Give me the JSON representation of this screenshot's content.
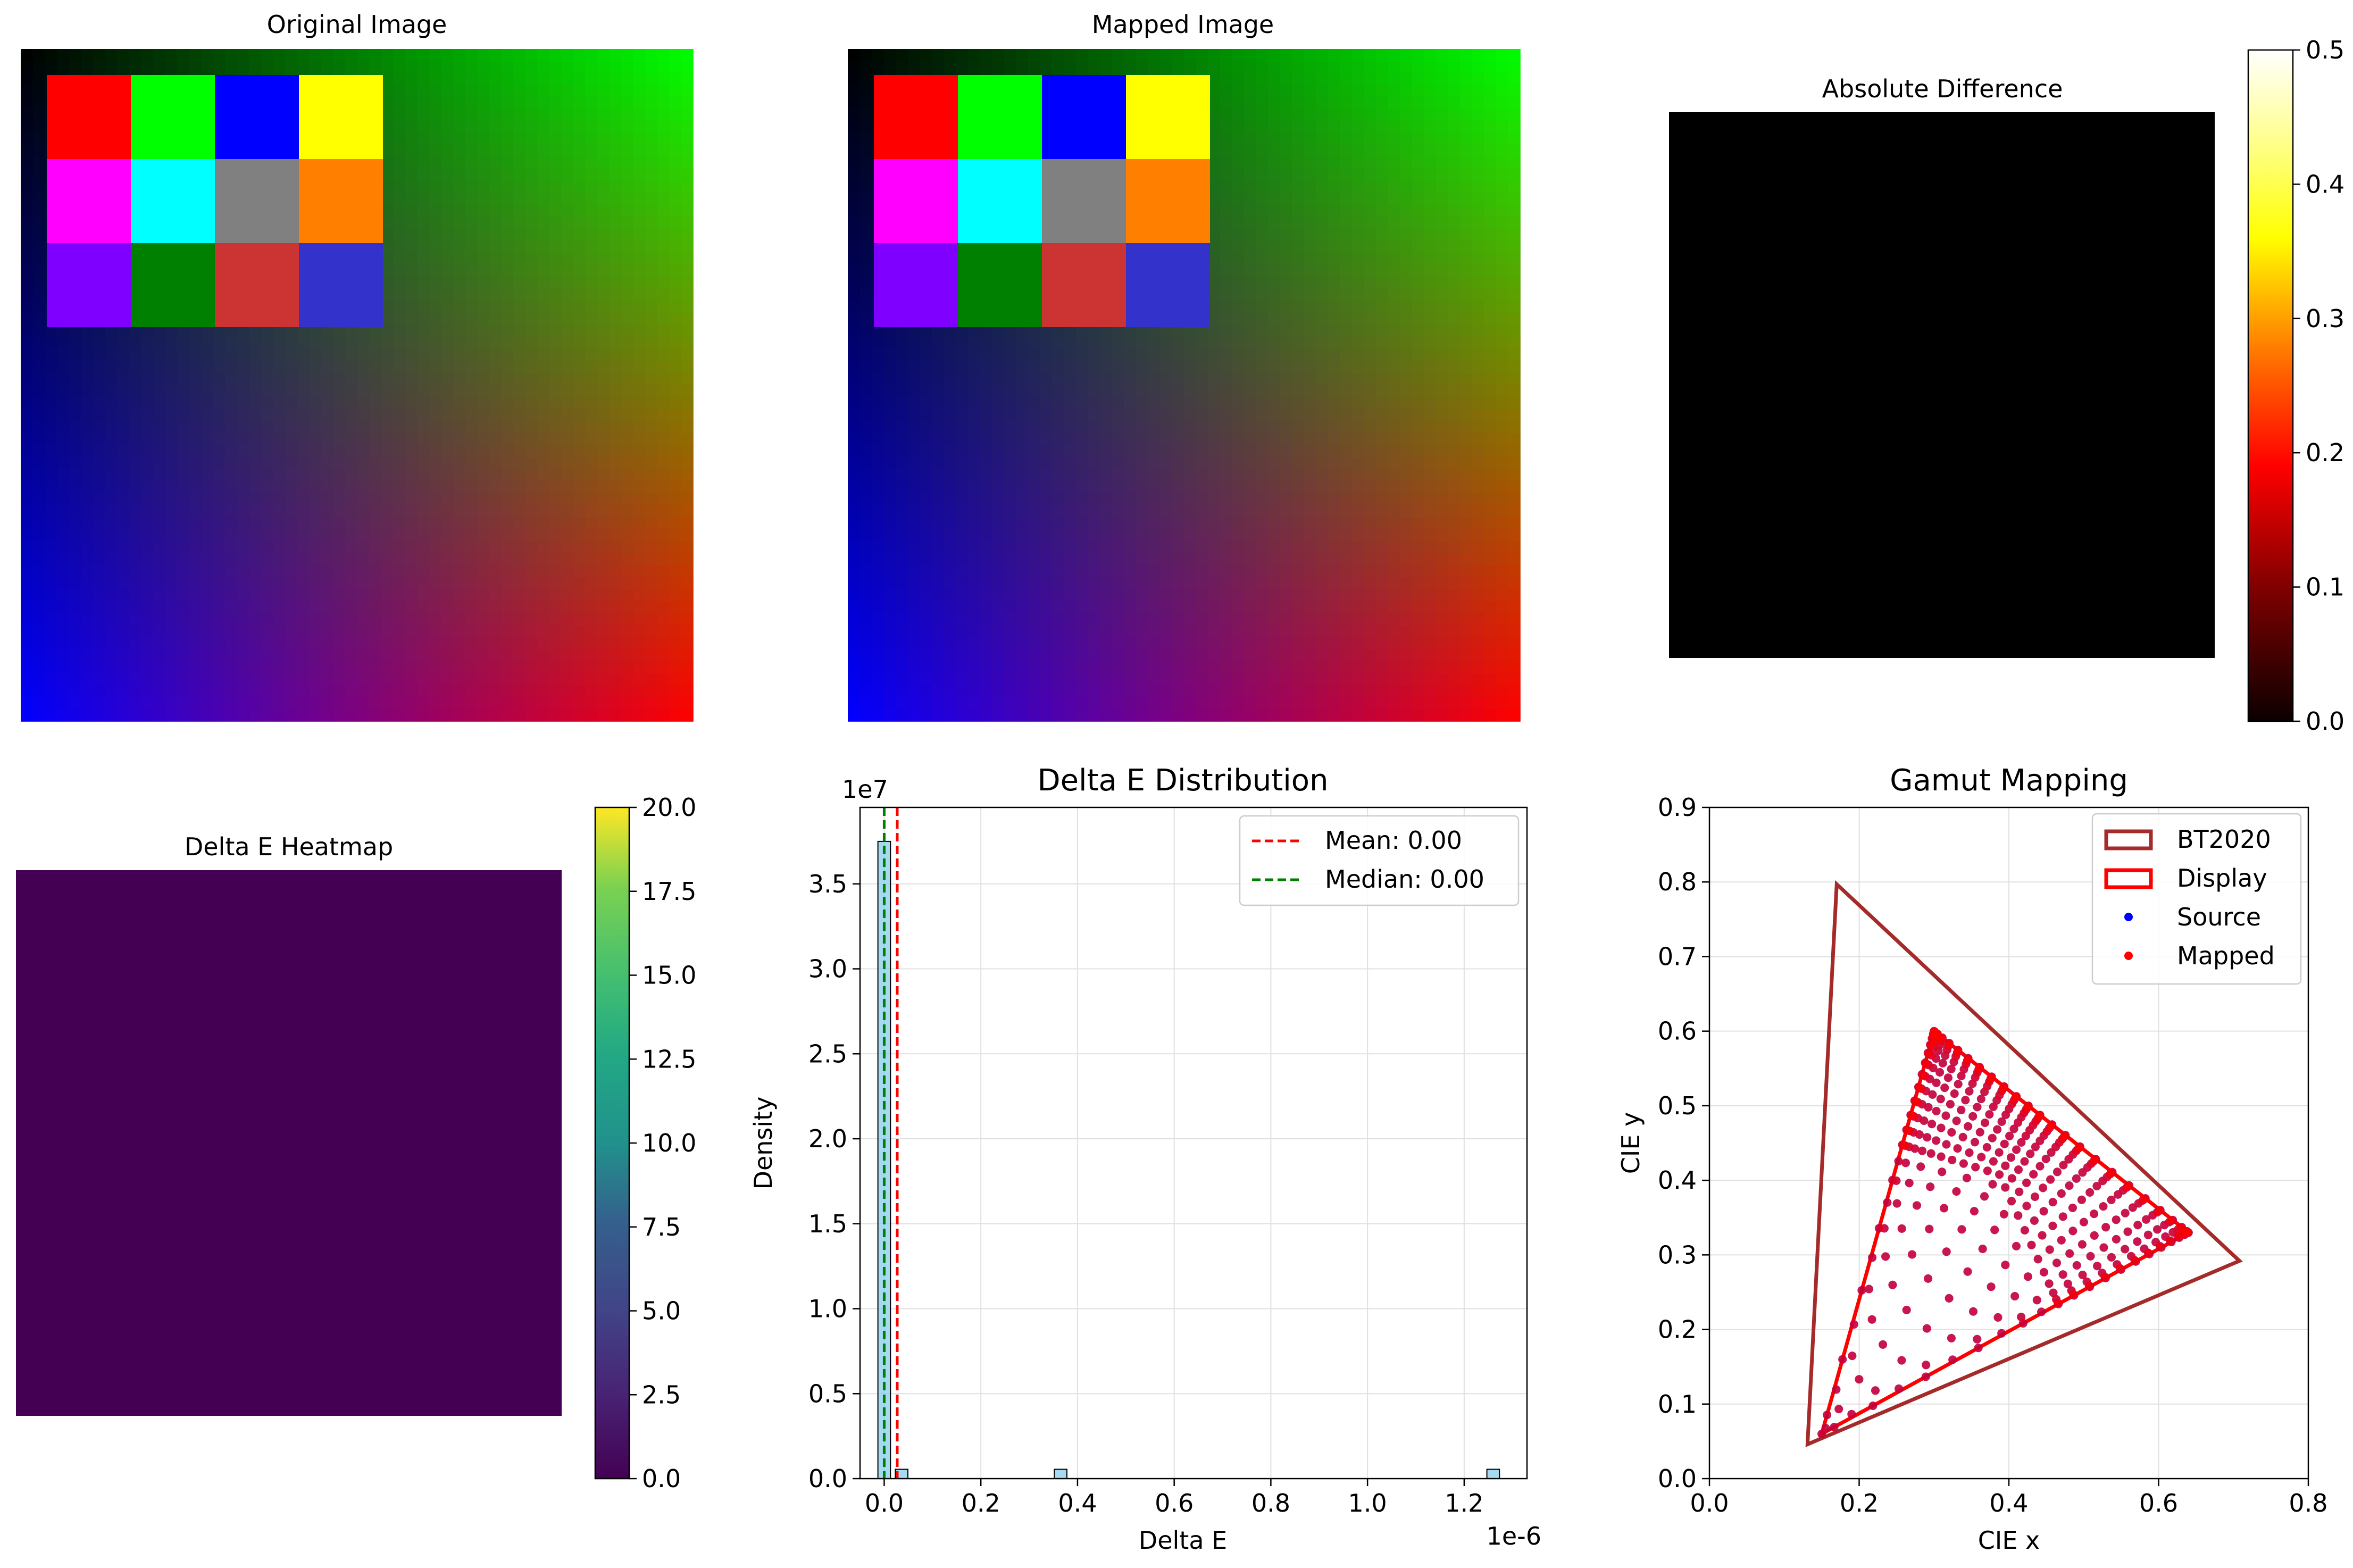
{
  "chart_data": [
    {
      "type": "image",
      "title": "Original Image",
      "gradient_corners": {
        "top_left": "#000000",
        "top_right": "#00ff00",
        "bottom_left": "#0000ff",
        "bottom_right": "#ff0000"
      },
      "patches": [
        [
          "#ff0000",
          "#00ff00",
          "#0000ff",
          "#ffff00"
        ],
        [
          "#ff00ff",
          "#00ffff",
          "#808080",
          "#ff8000"
        ],
        [
          "#8000ff",
          "#008000",
          "#cc3333",
          "#3333cc"
        ]
      ]
    },
    {
      "type": "image",
      "title": "Mapped Image",
      "gradient_corners": {
        "top_left": "#000000",
        "top_right": "#00ff00",
        "bottom_left": "#0000ff",
        "bottom_right": "#ff0000"
      },
      "patches": [
        [
          "#ff0000",
          "#00ff00",
          "#0000ff",
          "#ffff00"
        ],
        [
          "#ff00ff",
          "#00ffff",
          "#808080",
          "#ff8000"
        ],
        [
          "#8000ff",
          "#008000",
          "#cc3333",
          "#3333cc"
        ]
      ]
    },
    {
      "type": "heatmap",
      "title": "Absolute Difference",
      "fill": "#000000",
      "colorbar": {
        "colormap": "hot",
        "range": [
          0.0,
          0.5
        ],
        "ticks": [
          "0.0",
          "0.1",
          "0.2",
          "0.3",
          "0.4",
          "0.5"
        ]
      }
    },
    {
      "type": "heatmap",
      "title": "Delta E Heatmap",
      "fill": "#440154",
      "colorbar": {
        "colormap": "viridis",
        "range": [
          0.0,
          20.0
        ],
        "ticks": [
          "0.0",
          "2.5",
          "5.0",
          "7.5",
          "10.0",
          "12.5",
          "15.0",
          "17.5",
          "20.0"
        ]
      }
    },
    {
      "type": "bar",
      "title": "Delta E Distribution",
      "xlabel": "Delta E",
      "ylabel": "Density",
      "x_offset_label": "1e-6",
      "y_offset_label": "1e7",
      "xlim": [
        -0.05,
        1.33
      ],
      "ylim": [
        0,
        3.95
      ],
      "xticks": [
        "0.0",
        "0.2",
        "0.4",
        "0.6",
        "0.8",
        "1.0",
        "1.2"
      ],
      "yticks": [
        "0.0",
        "0.5",
        "1.0",
        "1.5",
        "2.0",
        "2.5",
        "3.0",
        "3.5"
      ],
      "bins": [
        {
          "x": 0.0,
          "value": 3.75
        },
        {
          "x": 0.036,
          "value": 0.055
        },
        {
          "x": 0.365,
          "value": 0.055
        },
        {
          "x": 1.26,
          "value": 0.055
        }
      ],
      "bar_color": "#87ceeb",
      "grid": true,
      "legend_position": "upper right",
      "reference_lines": [
        {
          "name": "Mean: 0.00",
          "x": 0.027,
          "color": "#ff0000",
          "style": "dashed"
        },
        {
          "name": "Median: 0.00",
          "x": 0.0,
          "color": "#008000",
          "style": "dashed"
        }
      ]
    },
    {
      "type": "scatter",
      "title": "Gamut Mapping",
      "xlabel": "CIE x",
      "ylabel": "CIE y",
      "xlim": [
        0.0,
        0.8
      ],
      "ylim": [
        0.0,
        0.9
      ],
      "xticks": [
        "0.0",
        "0.2",
        "0.4",
        "0.6",
        "0.8"
      ],
      "yticks": [
        "0.0",
        "0.1",
        "0.2",
        "0.3",
        "0.4",
        "0.5",
        "0.6",
        "0.7",
        "0.8",
        "0.9"
      ],
      "grid": true,
      "legend_position": "upper right",
      "polygons": [
        {
          "name": "BT2020",
          "color": "#a52a2a",
          "vertices": [
            [
              0.708,
              0.292
            ],
            [
              0.17,
              0.797
            ],
            [
              0.131,
              0.046
            ]
          ]
        },
        {
          "name": "Display",
          "color": "#ff0000",
          "vertices": [
            [
              0.64,
              0.33
            ],
            [
              0.3,
              0.6
            ],
            [
              0.15,
              0.06
            ]
          ]
        }
      ],
      "series": [
        {
          "name": "Source",
          "color": "#0000ff",
          "note": "dense point cloud filling Display gamut triangle"
        },
        {
          "name": "Mapped",
          "color": "#ff0000",
          "note": "overlaps Source points"
        }
      ]
    }
  ]
}
